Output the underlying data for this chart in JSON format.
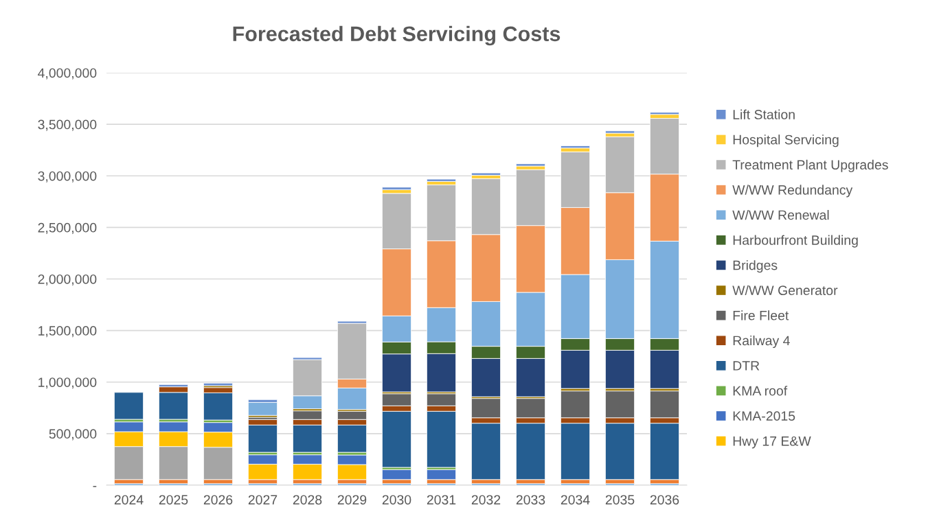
{
  "chart_data": {
    "type": "bar",
    "title": "Forecasted Debt Servicing Costs",
    "stacked": true,
    "grid": "y",
    "legend": "right",
    "categories": [
      "2024",
      "2025",
      "2026",
      "2027",
      "2028",
      "2029",
      "2030",
      "2031",
      "2032",
      "2033",
      "2034",
      "2035",
      "2036"
    ],
    "ylim": [
      0,
      4000000
    ],
    "yticks": [
      {
        "value": 0,
        "label": "-"
      },
      {
        "value": 500000,
        "label": "500,000"
      },
      {
        "value": 1000000,
        "label": "1,000,000"
      },
      {
        "value": 1500000,
        "label": "1,500,000"
      },
      {
        "value": 2000000,
        "label": "2,000,000"
      },
      {
        "value": 2500000,
        "label": "2,500,000"
      },
      {
        "value": 3000000,
        "label": "3,000,000"
      },
      {
        "value": 3500000,
        "label": "3,500,000"
      },
      {
        "value": 4000000,
        "label": "4,000,000"
      }
    ],
    "series": [
      {
        "color": "#5b9bd5",
        "values": [
          15000,
          15000,
          15000,
          15000,
          15000,
          15000,
          15000,
          15000,
          15000,
          15000,
          15000,
          15000,
          15000
        ]
      },
      {
        "color": "#ed7d31",
        "values": [
          40000,
          40000,
          40000,
          40000,
          40000,
          40000,
          40000,
          40000,
          40000,
          40000,
          40000,
          40000,
          40000
        ]
      },
      {
        "color": "#a5a5a5",
        "values": [
          320000,
          320000,
          313000,
          null,
          null,
          null,
          null,
          null,
          null,
          null,
          null,
          null,
          null
        ]
      },
      {
        "name": "Hwy 17 E&W",
        "color": "#ffc000",
        "values": [
          144000,
          144000,
          147000,
          149000,
          149000,
          145000,
          null,
          null,
          null,
          null,
          null,
          null,
          null
        ]
      },
      {
        "name": "KMA-2015",
        "color": "#4472c4",
        "values": [
          95000,
          95000,
          93000,
          91000,
          91000,
          93000,
          96000,
          96000,
          null,
          null,
          null,
          null,
          null
        ]
      },
      {
        "name": "KMA roof",
        "color": "#70ad47",
        "values": [
          25000,
          25000,
          24000,
          24000,
          24000,
          26000,
          22000,
          22000,
          null,
          null,
          null,
          null,
          null
        ]
      },
      {
        "name": "DTR",
        "color": "#255e91",
        "values": [
          261000,
          261000,
          264000,
          265000,
          265000,
          265000,
          544000,
          544000,
          546000,
          546000,
          546000,
          546000,
          546000
        ]
      },
      {
        "name": "Railway 4",
        "color": "#9e480e",
        "values": [
          null,
          54000,
          51000,
          53000,
          53000,
          53000,
          53000,
          53000,
          53000,
          53000,
          53000,
          53000,
          53000
        ]
      },
      {
        "name": "Fire Fleet",
        "color": "#636363",
        "values": [
          null,
          null,
          null,
          22000,
          84000,
          80000,
          117000,
          117000,
          187000,
          187000,
          260000,
          260000,
          260000
        ]
      },
      {
        "name": "W/WW Generator",
        "color": "#997300",
        "values": [
          null,
          null,
          18000,
          18000,
          20000,
          17000,
          18000,
          18000,
          17000,
          17000,
          24000,
          24000,
          24000
        ]
      },
      {
        "name": "Bridges",
        "color": "#264478",
        "values": [
          null,
          null,
          null,
          null,
          null,
          null,
          368000,
          371000,
          371000,
          371000,
          371000,
          371000,
          371000
        ]
      },
      {
        "name": "Harbourfront Building",
        "color": "#43682b",
        "values": [
          null,
          null,
          null,
          null,
          null,
          null,
          116000,
          115000,
          118000,
          118000,
          113000,
          113000,
          113000
        ]
      },
      {
        "name": "W/WW Renewal",
        "color": "#7cafdd",
        "values": [
          null,
          null,
          null,
          126000,
          126000,
          209000,
          253000,
          331000,
          434000,
          523000,
          621000,
          765000,
          945000
        ]
      },
      {
        "name": "W/WW Redundancy",
        "color": "#f1975a",
        "values": [
          null,
          null,
          null,
          null,
          null,
          87000,
          650000,
          649000,
          650000,
          648000,
          650000,
          650000,
          650000
        ]
      },
      {
        "name": "Treatment Plant Upgrades",
        "color": "#b7b7b7",
        "values": [
          null,
          null,
          null,
          null,
          351000,
          540000,
          538000,
          542000,
          542000,
          542000,
          540000,
          542000,
          541000
        ]
      },
      {
        "name": "Hospital Servicing",
        "color": "#ffcd33",
        "values": [
          null,
          null,
          null,
          null,
          null,
          null,
          36000,
          33000,
          33000,
          35000,
          37000,
          35000,
          38000
        ]
      },
      {
        "name": "Lift Station",
        "color": "#698ed0",
        "values": [
          null,
          22000,
          25000,
          27000,
          20000,
          20000,
          24000,
          22000,
          22000,
          22000,
          22000,
          22000,
          20000
        ]
      }
    ]
  }
}
